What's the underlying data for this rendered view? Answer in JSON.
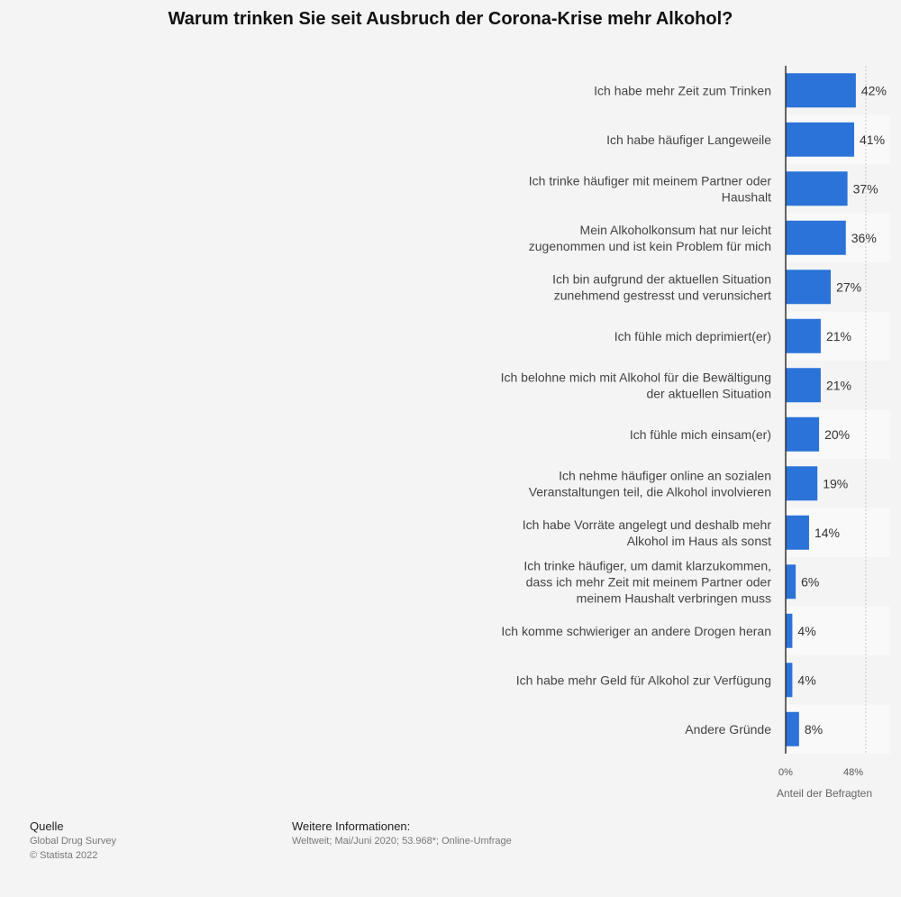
{
  "chart_data": {
    "type": "bar",
    "orientation": "horizontal",
    "title": "Warum trinken Sie seit Ausbruch der Corona-Krise mehr Alkohol?",
    "xlabel": "Anteil der Befragten",
    "xlim": [
      0,
      48
    ],
    "tick_labels": [
      "0%",
      "48%"
    ],
    "bar_color": "#2b73d8",
    "categories": [
      [
        "Ich habe mehr Zeit zum Trinken"
      ],
      [
        "Ich habe häufiger Langeweile"
      ],
      [
        "Ich trinke häufiger mit meinem Partner oder",
        "Haushalt"
      ],
      [
        "Mein Alkoholkonsum hat nur leicht",
        "zugenommen und ist kein Problem für mich"
      ],
      [
        "Ich bin aufgrund der aktuellen Situation",
        "zunehmend gestresst und verunsichert"
      ],
      [
        "Ich fühle mich deprimiert(er)"
      ],
      [
        "Ich belohne mich mit Alkohol für die Bewältigung",
        "der aktuellen Situation"
      ],
      [
        "Ich fühle mich einsam(er)"
      ],
      [
        "Ich nehme häufiger online an sozialen",
        "Veranstaltungen teil, die Alkohol involvieren"
      ],
      [
        "Ich habe Vorräte angelegt und deshalb mehr",
        "Alkohol im Haus als sonst"
      ],
      [
        "Ich trinke häufiger, um damit klarzukommen,",
        "dass ich mehr Zeit mit meinem Partner oder",
        "meinem Haushalt verbringen muss"
      ],
      [
        "Ich komme schwieriger an andere Drogen heran"
      ],
      [
        "Ich habe mehr Geld für Alkohol zur Verfügung"
      ],
      [
        "Andere Gründe"
      ]
    ],
    "values": [
      42,
      41,
      37,
      36,
      27,
      21,
      21,
      20,
      19,
      14,
      6,
      4,
      4,
      8
    ],
    "value_labels": [
      "42%",
      "41%",
      "37%",
      "36%",
      "27%",
      "21%",
      "21%",
      "20%",
      "19%",
      "14%",
      "6%",
      "4%",
      "4%",
      "8%"
    ]
  },
  "footer": {
    "source_heading": "Quelle",
    "source_name": "Global Drug Survey",
    "copyright": "© Statista 2022",
    "info_heading": "Weitere Informationen:",
    "info_text": "Weltweit; Mai/Juni 2020; 53.968*; Online-Umfrage"
  }
}
